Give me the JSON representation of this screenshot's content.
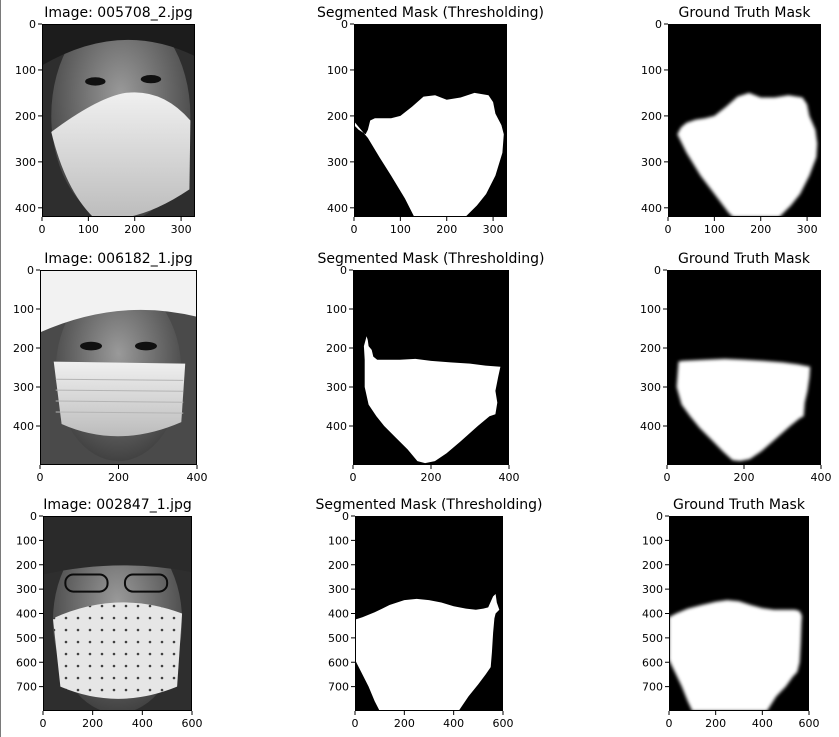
{
  "figure": {
    "background": "#ffffff",
    "mask_background": "#000000",
    "mask_foreground": "#ffffff"
  },
  "chart_data": [
    {
      "type": "image",
      "kind": "photo",
      "title": "Image: 005708_2.jpg",
      "xlim": [
        0,
        330
      ],
      "ylim": [
        0,
        420
      ],
      "xticks": [
        0,
        100,
        200,
        300
      ],
      "yticks": [
        0,
        100,
        200,
        300,
        400
      ]
    },
    {
      "type": "image",
      "kind": "thresh",
      "title": "Segmented Mask (Thresholding)",
      "xlim": [
        0,
        330
      ],
      "ylim": [
        0,
        420
      ],
      "xticks": [
        0,
        100,
        200,
        300
      ],
      "yticks": [
        0,
        100,
        200,
        300,
        400
      ],
      "mask_polygon": [
        [
          25,
          240
        ],
        [
          10,
          230
        ],
        [
          0,
          220
        ],
        [
          0,
          212
        ],
        [
          30,
          248
        ],
        [
          55,
          290
        ],
        [
          80,
          330
        ],
        [
          110,
          380
        ],
        [
          130,
          420
        ],
        [
          240,
          420
        ],
        [
          265,
          395
        ],
        [
          285,
          370
        ],
        [
          305,
          330
        ],
        [
          320,
          280
        ],
        [
          323,
          240
        ],
        [
          318,
          220
        ],
        [
          305,
          195
        ],
        [
          300,
          170
        ],
        [
          290,
          155
        ],
        [
          260,
          150
        ],
        [
          230,
          160
        ],
        [
          200,
          165
        ],
        [
          175,
          155
        ],
        [
          150,
          158
        ],
        [
          125,
          180
        ],
        [
          100,
          200
        ],
        [
          80,
          205
        ],
        [
          60,
          205
        ],
        [
          45,
          205
        ],
        [
          35,
          210
        ],
        [
          30,
          230
        ]
      ]
    },
    {
      "type": "image",
      "kind": "gt",
      "title": "Ground Truth Mask",
      "xlim": [
        0,
        330
      ],
      "ylim": [
        0,
        420
      ],
      "xticks": [
        0,
        100,
        200,
        300
      ],
      "yticks": [
        0,
        100,
        200,
        300,
        400
      ],
      "mask_polygon": [
        [
          20,
          240
        ],
        [
          40,
          280
        ],
        [
          70,
          330
        ],
        [
          100,
          370
        ],
        [
          130,
          410
        ],
        [
          140,
          420
        ],
        [
          240,
          420
        ],
        [
          265,
          395
        ],
        [
          285,
          370
        ],
        [
          305,
          330
        ],
        [
          320,
          290
        ],
        [
          322,
          260
        ],
        [
          318,
          230
        ],
        [
          305,
          200
        ],
        [
          300,
          175
        ],
        [
          290,
          160
        ],
        [
          260,
          155
        ],
        [
          230,
          160
        ],
        [
          200,
          160
        ],
        [
          175,
          150
        ],
        [
          150,
          158
        ],
        [
          125,
          180
        ],
        [
          100,
          200
        ],
        [
          80,
          205
        ],
        [
          60,
          208
        ],
        [
          40,
          215
        ],
        [
          28,
          225
        ]
      ]
    },
    {
      "type": "image",
      "kind": "photo",
      "title": "Image: 006182_1.jpg",
      "xlim": [
        0,
        400
      ],
      "ylim": [
        0,
        500
      ],
      "xticks": [
        0,
        200,
        400
      ],
      "yticks": [
        0,
        100,
        200,
        300,
        400
      ]
    },
    {
      "type": "image",
      "kind": "thresh",
      "title": "Segmented Mask (Thresholding)",
      "xlim": [
        0,
        400
      ],
      "ylim": [
        0,
        500
      ],
      "xticks": [
        0,
        200,
        400
      ],
      "yticks": [
        0,
        100,
        200,
        300,
        400
      ],
      "mask_polygon": [
        [
          30,
          230
        ],
        [
          30,
          300
        ],
        [
          40,
          345
        ],
        [
          60,
          375
        ],
        [
          80,
          400
        ],
        [
          110,
          430
        ],
        [
          140,
          460
        ],
        [
          165,
          490
        ],
        [
          185,
          495
        ],
        [
          210,
          490
        ],
        [
          240,
          470
        ],
        [
          275,
          440
        ],
        [
          320,
          400
        ],
        [
          350,
          375
        ],
        [
          365,
          370
        ],
        [
          370,
          340
        ],
        [
          365,
          310
        ],
        [
          372,
          275
        ],
        [
          378,
          248
        ],
        [
          340,
          245
        ],
        [
          300,
          240
        ],
        [
          250,
          237
        ],
        [
          200,
          233
        ],
        [
          160,
          228
        ],
        [
          120,
          230
        ],
        [
          80,
          230
        ],
        [
          62,
          230
        ],
        [
          52,
          222
        ],
        [
          48,
          205
        ],
        [
          40,
          195
        ],
        [
          38,
          180
        ],
        [
          35,
          170
        ],
        [
          28,
          195
        ]
      ]
    },
    {
      "type": "image",
      "kind": "gt",
      "title": "Ground Truth Mask",
      "xlim": [
        0,
        400
      ],
      "ylim": [
        0,
        500
      ],
      "xticks": [
        0,
        200,
        400
      ],
      "yticks": [
        0,
        100,
        200,
        300,
        400
      ],
      "mask_polygon": [
        [
          30,
          235
        ],
        [
          25,
          300
        ],
        [
          38,
          345
        ],
        [
          60,
          375
        ],
        [
          85,
          405
        ],
        [
          115,
          435
        ],
        [
          145,
          465
        ],
        [
          170,
          488
        ],
        [
          190,
          490
        ],
        [
          215,
          485
        ],
        [
          245,
          465
        ],
        [
          280,
          435
        ],
        [
          320,
          400
        ],
        [
          345,
          380
        ],
        [
          355,
          375
        ],
        [
          358,
          340
        ],
        [
          365,
          310
        ],
        [
          370,
          275
        ],
        [
          372,
          248
        ],
        [
          340,
          242
        ],
        [
          300,
          237
        ],
        [
          250,
          233
        ],
        [
          200,
          230
        ],
        [
          150,
          228
        ],
        [
          100,
          230
        ],
        [
          60,
          232
        ],
        [
          40,
          233
        ]
      ]
    },
    {
      "type": "image",
      "kind": "photo",
      "title": "Image: 002847_1.jpg",
      "xlim": [
        0,
        600
      ],
      "ylim": [
        0,
        800
      ],
      "xticks": [
        0,
        200,
        400,
        600
      ],
      "yticks": [
        0,
        100,
        200,
        300,
        400,
        500,
        600,
        700
      ]
    },
    {
      "type": "image",
      "kind": "thresh",
      "title": "Segmented Mask (Thresholding)",
      "xlim": [
        0,
        600
      ],
      "ylim": [
        0,
        800
      ],
      "xticks": [
        0,
        200,
        400,
        600
      ],
      "yticks": [
        0,
        100,
        200,
        300,
        400,
        500,
        600,
        700
      ],
      "mask_polygon": [
        [
          0,
          425
        ],
        [
          30,
          415
        ],
        [
          80,
          395
        ],
        [
          140,
          365
        ],
        [
          200,
          345
        ],
        [
          250,
          340
        ],
        [
          300,
          345
        ],
        [
          350,
          355
        ],
        [
          400,
          370
        ],
        [
          450,
          380
        ],
        [
          490,
          385
        ],
        [
          520,
          380
        ],
        [
          540,
          375
        ],
        [
          560,
          330
        ],
        [
          570,
          320
        ],
        [
          575,
          355
        ],
        [
          585,
          385
        ],
        [
          570,
          400
        ],
        [
          565,
          420
        ],
        [
          560,
          480
        ],
        [
          555,
          560
        ],
        [
          550,
          620
        ],
        [
          530,
          650
        ],
        [
          500,
          690
        ],
        [
          460,
          740
        ],
        [
          420,
          800
        ],
        [
          100,
          800
        ],
        [
          80,
          760
        ],
        [
          55,
          700
        ],
        [
          25,
          640
        ],
        [
          10,
          610
        ],
        [
          0,
          590
        ]
      ]
    },
    {
      "type": "image",
      "kind": "gt",
      "title": "Ground Truth Mask",
      "xlim": [
        0,
        600
      ],
      "ylim": [
        0,
        800
      ],
      "xticks": [
        0,
        200,
        400,
        600
      ],
      "yticks": [
        0,
        100,
        200,
        300,
        400,
        500,
        600,
        700
      ],
      "mask_polygon": [
        [
          0,
          415
        ],
        [
          30,
          400
        ],
        [
          80,
          380
        ],
        [
          140,
          365
        ],
        [
          200,
          352
        ],
        [
          250,
          345
        ],
        [
          300,
          350
        ],
        [
          350,
          365
        ],
        [
          400,
          378
        ],
        [
          450,
          385
        ],
        [
          500,
          385
        ],
        [
          540,
          385
        ],
        [
          560,
          390
        ],
        [
          570,
          410
        ],
        [
          568,
          440
        ],
        [
          565,
          520
        ],
        [
          560,
          600
        ],
        [
          550,
          640
        ],
        [
          530,
          660
        ],
        [
          500,
          700
        ],
        [
          460,
          740
        ],
        [
          420,
          800
        ],
        [
          100,
          800
        ],
        [
          80,
          760
        ],
        [
          55,
          700
        ],
        [
          30,
          650
        ],
        [
          10,
          610
        ],
        [
          0,
          590
        ]
      ]
    }
  ]
}
